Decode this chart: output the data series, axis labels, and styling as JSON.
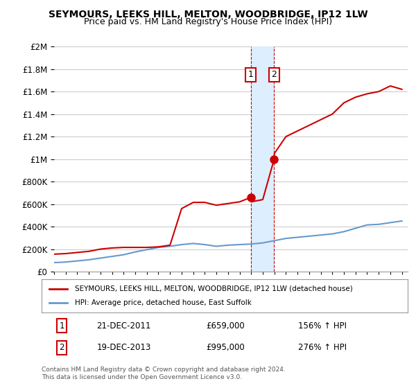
{
  "title": "SEYMOURS, LEEKS HILL, MELTON, WOODBRIDGE, IP12 1LW",
  "subtitle": "Price paid vs. HM Land Registry's House Price Index (HPI)",
  "legend_label_red": "SEYMOURS, LEEKS HILL, MELTON, WOODBRIDGE, IP12 1LW (detached house)",
  "legend_label_blue": "HPI: Average price, detached house, East Suffolk",
  "sale1_label": "1",
  "sale1_date": "21-DEC-2011",
  "sale1_price": "£659,000",
  "sale1_hpi": "156% ↑ HPI",
  "sale2_label": "2",
  "sale2_date": "19-DEC-2013",
  "sale2_price": "£995,000",
  "sale2_hpi": "276% ↑ HPI",
  "footer": "Contains HM Land Registry data © Crown copyright and database right 2024.\nThis data is licensed under the Open Government Licence v3.0.",
  "sale1_x": 2011.97,
  "sale1_y": 659000,
  "sale2_x": 2013.97,
  "sale2_y": 995000,
  "red_color": "#cc0000",
  "blue_color": "#6699cc",
  "highlight_box_color": "#ddeeff",
  "annotation_box_color": "#ffffff",
  "annotation_border_color": "#cc0000",
  "ylim": [
    0,
    2000000
  ],
  "xlim": [
    1995,
    2025.5
  ],
  "background_color": "#ffffff",
  "grid_color": "#cccccc",
  "hpi_x": [
    1995,
    1996,
    1997,
    1998,
    1999,
    2000,
    2001,
    2002,
    2003,
    2004,
    2005,
    2006,
    2007,
    2008,
    2009,
    2010,
    2011,
    2012,
    2013,
    2014,
    2015,
    2016,
    2017,
    2018,
    2019,
    2020,
    2021,
    2022,
    2023,
    2024,
    2025
  ],
  "hpi_y": [
    80000,
    85000,
    95000,
    105000,
    120000,
    135000,
    150000,
    175000,
    195000,
    215000,
    225000,
    240000,
    250000,
    240000,
    225000,
    235000,
    240000,
    245000,
    255000,
    275000,
    295000,
    305000,
    315000,
    325000,
    335000,
    355000,
    385000,
    415000,
    420000,
    435000,
    450000
  ],
  "red_x": [
    1995,
    1996,
    1997,
    1998,
    1999,
    2000,
    2001,
    2002,
    2003,
    2004,
    2005,
    2006,
    2007,
    2008,
    2009,
    2010,
    2011,
    2011.97,
    2012,
    2013,
    2013.97,
    2014,
    2015,
    2016,
    2017,
    2018,
    2019,
    2020,
    2021,
    2022,
    2023,
    2024,
    2025
  ],
  "red_y": [
    155000,
    160000,
    170000,
    180000,
    200000,
    210000,
    215000,
    215000,
    215000,
    220000,
    235000,
    560000,
    615000,
    615000,
    590000,
    605000,
    620000,
    659000,
    620000,
    640000,
    995000,
    1050000,
    1200000,
    1250000,
    1300000,
    1350000,
    1400000,
    1500000,
    1550000,
    1580000,
    1600000,
    1650000,
    1620000
  ]
}
